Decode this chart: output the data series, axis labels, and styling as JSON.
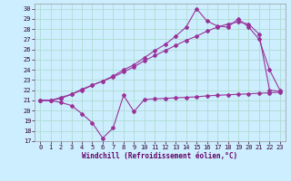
{
  "xlabel": "Windchill (Refroidissement éolien,°C)",
  "bg_color": "#cceeff",
  "grid_color": "#b0ddd0",
  "line_color": "#993399",
  "xlim": [
    -0.5,
    23.5
  ],
  "ylim": [
    17,
    30.5
  ],
  "yticks": [
    17,
    18,
    19,
    20,
    21,
    22,
    23,
    24,
    25,
    26,
    27,
    28,
    29,
    30
  ],
  "xticks": [
    0,
    1,
    2,
    3,
    4,
    5,
    6,
    7,
    8,
    9,
    10,
    11,
    12,
    13,
    14,
    15,
    16,
    17,
    18,
    19,
    20,
    21,
    22,
    23
  ],
  "series1_x": [
    0,
    1,
    2,
    3,
    4,
    5,
    6,
    7,
    8,
    9,
    10,
    11,
    12,
    13,
    14,
    15,
    16,
    17,
    18,
    19,
    20,
    21,
    22,
    23
  ],
  "series1_y": [
    21.0,
    21.0,
    20.8,
    20.5,
    19.7,
    18.8,
    17.3,
    18.3,
    21.5,
    19.9,
    21.1,
    21.15,
    21.2,
    21.25,
    21.3,
    21.35,
    21.45,
    21.5,
    21.55,
    21.6,
    21.65,
    21.7,
    21.75,
    21.8
  ],
  "series2_x": [
    0,
    1,
    2,
    3,
    4,
    5,
    6,
    7,
    8,
    9,
    10,
    11,
    12,
    13,
    14,
    15,
    16,
    17,
    18,
    19,
    20,
    21,
    22,
    23
  ],
  "series2_y": [
    21.0,
    21.0,
    21.3,
    21.6,
    22.1,
    22.5,
    22.9,
    23.3,
    23.8,
    24.3,
    24.9,
    25.4,
    25.9,
    26.4,
    26.9,
    27.3,
    27.8,
    28.2,
    28.5,
    28.7,
    28.5,
    27.5,
    22.0,
    21.9
  ],
  "series3_x": [
    0,
    1,
    2,
    3,
    4,
    5,
    6,
    7,
    8,
    9,
    10,
    11,
    12,
    13,
    14,
    15,
    16,
    17,
    18,
    19,
    20,
    21,
    22,
    23
  ],
  "series3_y": [
    21.0,
    21.0,
    21.2,
    21.6,
    22.0,
    22.5,
    22.9,
    23.4,
    24.0,
    24.5,
    25.2,
    25.9,
    26.5,
    27.3,
    28.2,
    30.0,
    28.8,
    28.3,
    28.2,
    29.0,
    28.2,
    27.0,
    24.0,
    22.0
  ]
}
